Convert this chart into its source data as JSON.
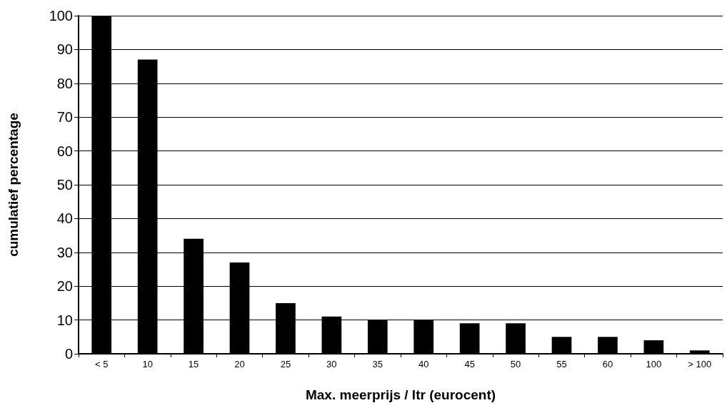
{
  "chart_data": {
    "type": "bar",
    "xlabel": "Max. meerprijs / ltr (eurocent)",
    "ylabel": "cumulatief percentage",
    "categories": [
      "< 5",
      "10",
      "15",
      "20",
      "25",
      "30",
      "35",
      "40",
      "45",
      "50",
      "55",
      "60",
      "100",
      "> 100"
    ],
    "values": [
      100,
      87,
      34,
      27,
      15,
      11,
      10,
      10,
      9,
      9,
      5,
      5,
      4,
      1
    ],
    "color": "#000000",
    "ylim": [
      0,
      100
    ],
    "yticks": [
      0,
      10,
      20,
      30,
      40,
      50,
      60,
      70,
      80,
      90,
      100
    ],
    "grid": "y"
  }
}
